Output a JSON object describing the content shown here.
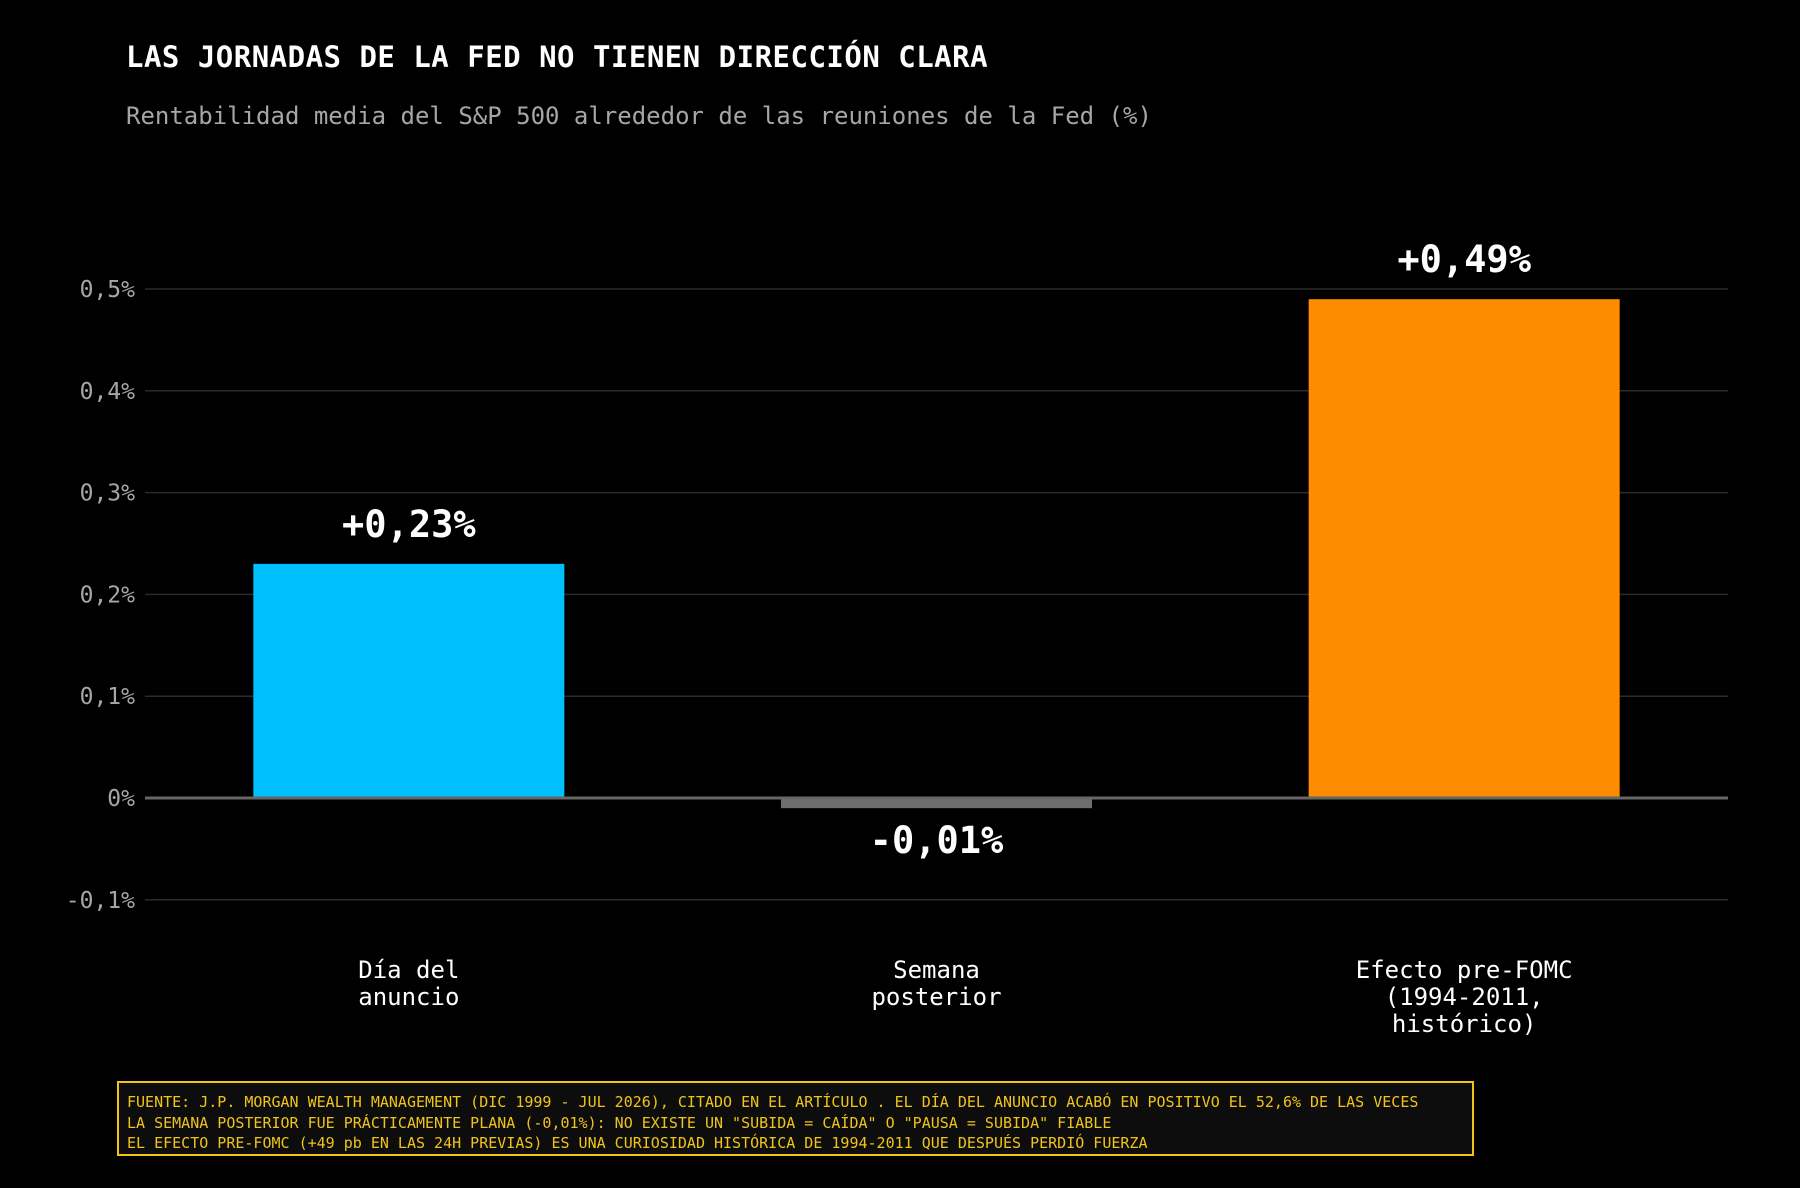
{
  "colors": {
    "background": "#000000",
    "grid": "#2b2b2b",
    "zero_line": "#666666",
    "tick_text": "#a6a6a6",
    "label_text": "#ffffff",
    "note_text": "#f0c419"
  },
  "chart_data": {
    "type": "bar",
    "title": "LAS JORNADAS DE LA FED NO TIENEN DIRECCIÓN CLARA",
    "subtitle": "Rentabilidad media del S&P 500 alrededor de las reuniones de la Fed (%)",
    "categories": [
      [
        "Día del",
        "anuncio"
      ],
      [
        "Semana",
        "posterior"
      ],
      [
        "Efecto pre-FOMC",
        "(1994-2011,",
        "histórico)"
      ]
    ],
    "values": [
      0.23,
      -0.01,
      0.49
    ],
    "data_labels": [
      "+0,23%",
      "-0,01%",
      "+0,49%"
    ],
    "bar_colors": [
      "#00bfff",
      "#6e6e6e",
      "#ff8c00"
    ],
    "ylim": [
      -0.125,
      0.5
    ],
    "yticks": [
      -0.1,
      0,
      0.1,
      0.2,
      0.3,
      0.4,
      0.5
    ],
    "ytick_labels": [
      "-0,1%",
      "0%",
      "0,1%",
      "0,2%",
      "0,3%",
      "0,4%",
      "0,5%"
    ],
    "grid": true,
    "legend": "none"
  },
  "footnote": {
    "lines": [
      "FUENTE: J.P. MORGAN WEALTH MANAGEMENT (DIC 1999 - JUL 2026), CITADO EN EL ARTÍCULO . EL DÍA DEL ANUNCIO ACABÓ EN POSITIVO EL 52,6% DE LAS VECES",
      "LA SEMANA POSTERIOR FUE PRÁCTICAMENTE PLANA (-0,01%): NO EXISTE UN \"SUBIDA = CAÍDA\" O \"PAUSA = SUBIDA\" FIABLE",
      "EL EFECTO PRE-FOMC (+49 pb EN LAS 24H PREVIAS) ES UNA CURIOSIDAD HISTÓRICA DE 1994-2011 QUE DESPUÉS PERDIÓ FUERZA"
    ]
  }
}
